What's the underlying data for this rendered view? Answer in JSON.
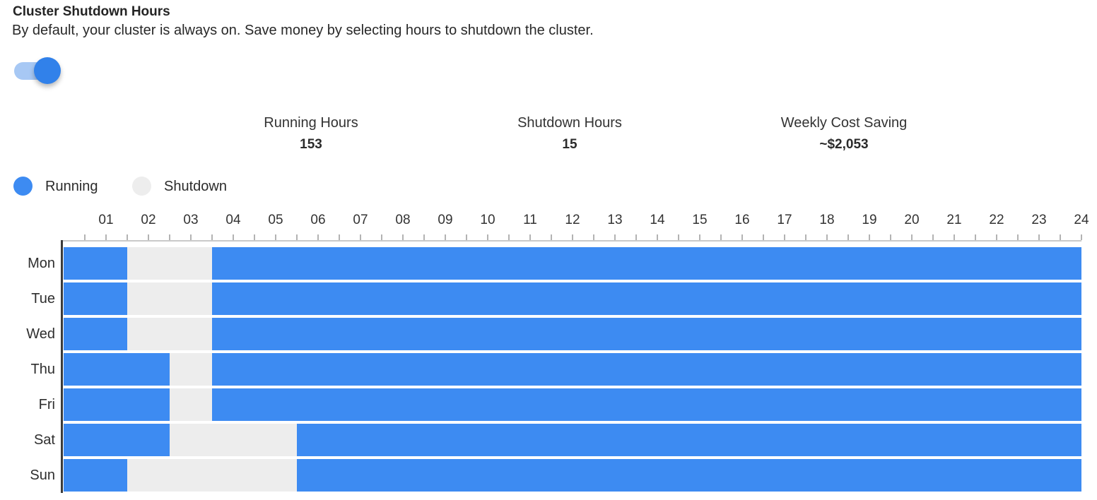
{
  "header": {
    "title": "Cluster Shutdown Hours",
    "subtitle": "By default, your cluster is always on. Save money by selecting hours to shutdown the cluster."
  },
  "toggle": {
    "name": "cluster-shutdown-enabled",
    "state": "on"
  },
  "stats": [
    {
      "label": "Running Hours",
      "value": "153"
    },
    {
      "label": "Shutdown Hours",
      "value": "15"
    },
    {
      "label": "Weekly Cost Saving",
      "value": "~$2,053"
    }
  ],
  "legend": [
    {
      "label": "Running",
      "color": "#3d8bf2"
    },
    {
      "label": "Shutdown",
      "color": "#ededed"
    }
  ],
  "chart_data": {
    "type": "heatmap",
    "title": "Weekly cluster running/shutdown schedule",
    "x_ticks": [
      "01",
      "02",
      "03",
      "04",
      "05",
      "06",
      "07",
      "08",
      "09",
      "10",
      "11",
      "12",
      "13",
      "14",
      "15",
      "16",
      "17",
      "18",
      "19",
      "20",
      "21",
      "22",
      "23",
      "24"
    ],
    "x_range_hours": [
      0,
      24
    ],
    "tick_step_hours": 0.5,
    "days": [
      "Mon",
      "Tue",
      "Wed",
      "Thu",
      "Fri",
      "Sat",
      "Sun"
    ],
    "shutdown_intervals_hours": {
      "Mon": [
        [
          1.5,
          3.5
        ]
      ],
      "Tue": [
        [
          1.5,
          3.5
        ]
      ],
      "Wed": [
        [
          1.5,
          3.5
        ]
      ],
      "Thu": [
        [
          2.5,
          3.5
        ]
      ],
      "Fri": [
        [
          2.5,
          3.5
        ]
      ],
      "Sat": [
        [
          2.5,
          5.5
        ]
      ],
      "Sun": [
        [
          1.5,
          5.5
        ]
      ]
    },
    "totals": {
      "running_hours": 153,
      "shutdown_hours": 15,
      "weekly_cost_saving": "~$2,053"
    },
    "colors": {
      "running": "#3d8bf2",
      "shutdown": "#ededed"
    },
    "layout": {
      "legend_position": "top-left",
      "grid": false,
      "x_axis_position": "top"
    }
  }
}
